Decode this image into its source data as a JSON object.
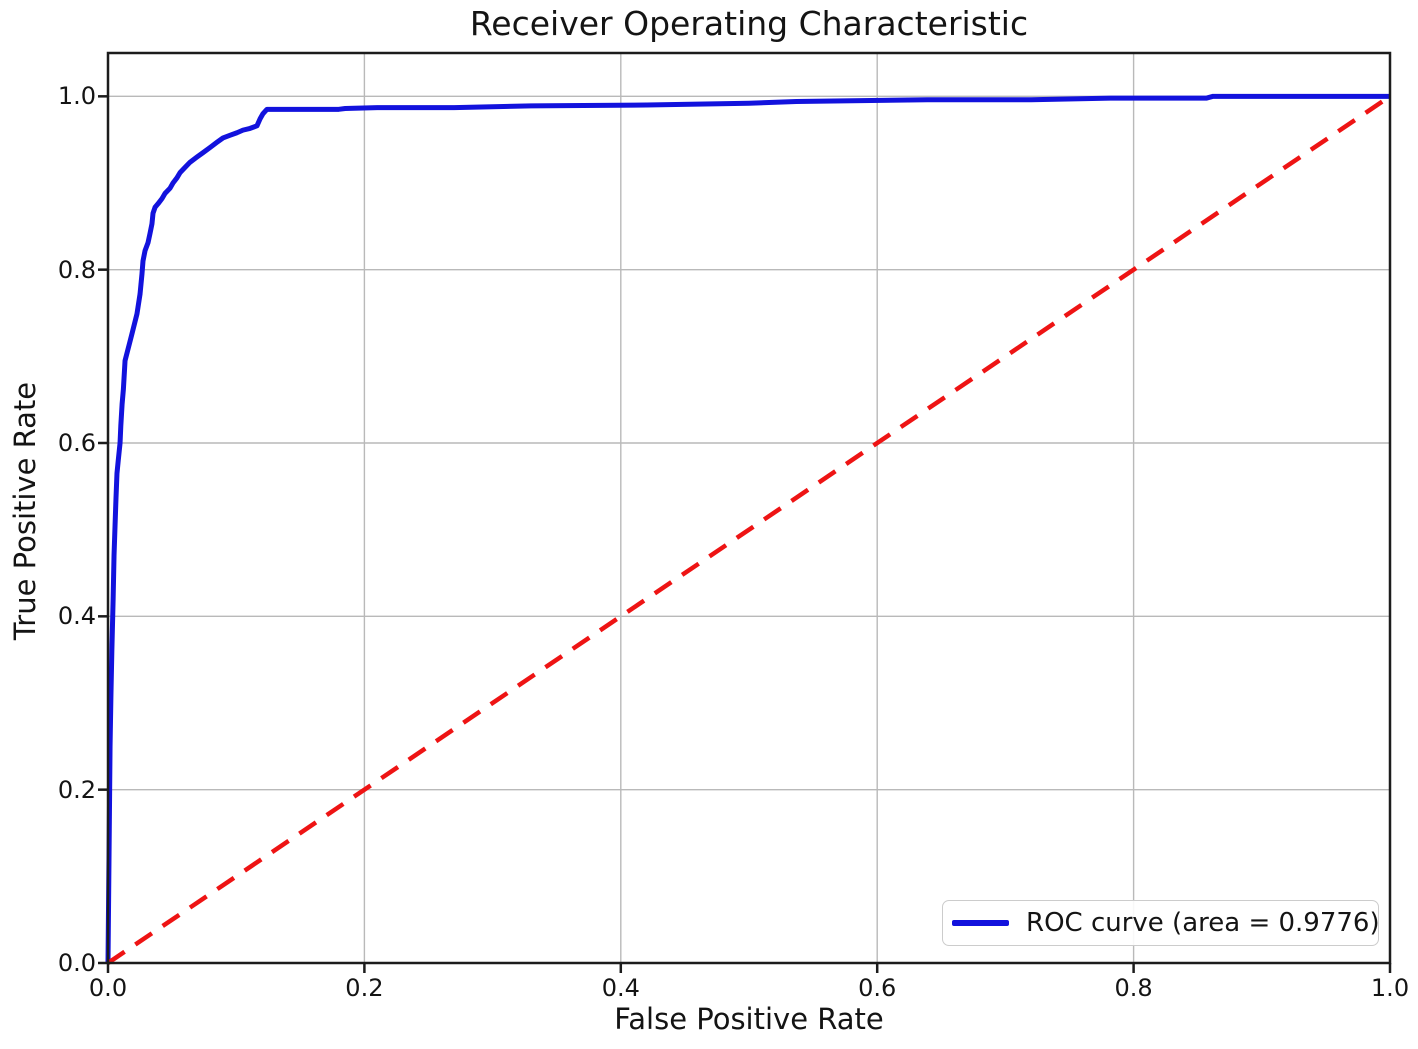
{
  "figure": {
    "background": "#ffffff"
  },
  "chart_data": {
    "type": "line",
    "title": "Receiver Operating Characteristic",
    "xlabel": "False Positive Rate",
    "ylabel": "True Positive Rate",
    "xlim": [
      0.0,
      1.0
    ],
    "ylim": [
      0.0,
      1.05
    ],
    "xticks": [
      0.0,
      0.2,
      0.4,
      0.6,
      0.8,
      1.0
    ],
    "yticks": [
      0.0,
      0.2,
      0.4,
      0.6,
      0.8,
      1.0
    ],
    "xtick_labels": [
      "0.0",
      "0.2",
      "0.4",
      "0.6",
      "0.8",
      "1.0"
    ],
    "ytick_labels": [
      "0.0",
      "0.2",
      "0.4",
      "0.6",
      "0.8",
      "1.0"
    ],
    "grid": true,
    "grid_color": "#b9b9b9",
    "spine_color": "#1c1c1c",
    "text_color": "#141414",
    "legend": {
      "position": "lower right",
      "entries": [
        {
          "label": "ROC curve (area = 0.9776)",
          "color": "#1212dd",
          "style": "solid"
        }
      ]
    },
    "series": [
      {
        "name": "ROC curve (area = 0.9776)",
        "color": "#1212dd",
        "line_width": 5,
        "dash": null,
        "x": [
          0.0,
          0.001,
          0.0016,
          0.0023,
          0.003,
          0.004,
          0.0047,
          0.0055,
          0.0062,
          0.007,
          0.008,
          0.0094,
          0.01,
          0.011,
          0.012,
          0.0133,
          0.0187,
          0.0226,
          0.025,
          0.0265,
          0.0273,
          0.0289,
          0.0312,
          0.0328,
          0.0343,
          0.0351,
          0.0367,
          0.039,
          0.0421,
          0.0445,
          0.0484,
          0.0507,
          0.0538,
          0.0562,
          0.0601,
          0.064,
          0.0694,
          0.0741,
          0.0796,
          0.085,
          0.0897,
          0.0951,
          0.1006,
          0.1053,
          0.1108,
          0.1162,
          0.1186,
          0.1209,
          0.124,
          0.18,
          0.185,
          0.21,
          0.27,
          0.33,
          0.42,
          0.5,
          0.537,
          0.639,
          0.72,
          0.782,
          0.857,
          0.862,
          1.0
        ],
        "y": [
          0.0,
          0.155,
          0.25,
          0.31,
          0.36,
          0.42,
          0.47,
          0.505,
          0.535,
          0.565,
          0.58,
          0.6,
          0.62,
          0.645,
          0.662,
          0.695,
          0.726,
          0.749,
          0.772,
          0.795,
          0.81,
          0.822,
          0.831,
          0.842,
          0.853,
          0.865,
          0.872,
          0.876,
          0.882,
          0.888,
          0.894,
          0.9,
          0.906,
          0.912,
          0.918,
          0.924,
          0.93,
          0.935,
          0.941,
          0.947,
          0.952,
          0.955,
          0.958,
          0.961,
          0.963,
          0.966,
          0.974,
          0.98,
          0.985,
          0.985,
          0.986,
          0.987,
          0.987,
          0.989,
          0.99,
          0.992,
          0.994,
          0.996,
          0.996,
          0.998,
          0.998,
          1.0,
          1.0
        ]
      },
      {
        "name": "chance-diagonal",
        "color": "#ee1414",
        "line_width": 4.5,
        "dash": [
          20,
          13
        ],
        "x": [
          0.0,
          1.0
        ],
        "y": [
          0.0,
          1.0
        ]
      }
    ]
  }
}
